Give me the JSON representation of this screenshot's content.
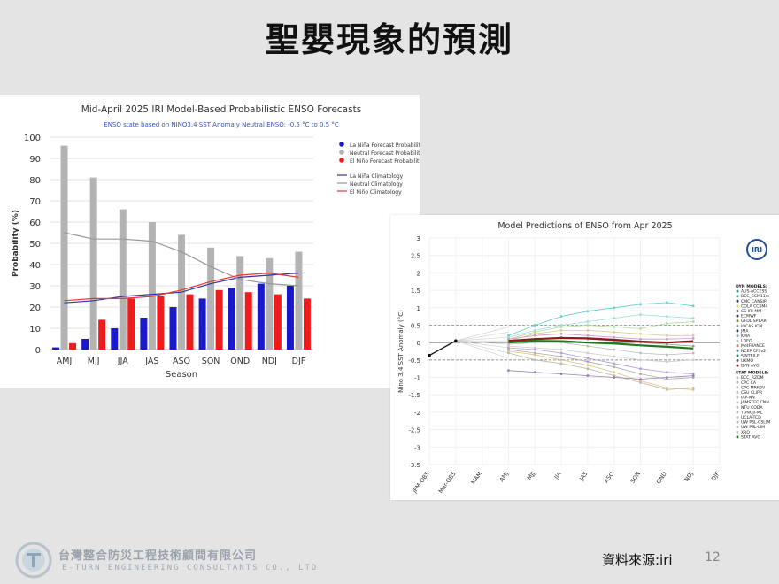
{
  "slide": {
    "title": "聖嬰現象的預測",
    "source": "資料來源:iri",
    "page_number": "12",
    "company_zh": "台灣整合防災工程技術顧問有限公司",
    "company_en": "E-TURN ENGINEERING CONSULTANTS CO., LTD"
  },
  "colors": {
    "background": "#e4e4e4",
    "la_nina": "#1a1acc",
    "neutral": "#b3b3b3",
    "el_nino": "#ee1c1c",
    "la_nina_clim": "#3333aa",
    "neutral_clim": "#999999",
    "el_nino_clim": "#e53935"
  },
  "chart_data": [
    {
      "type": "bar",
      "title": "Mid-April 2025 IRI Model-Based Probabilistic ENSO Forecasts",
      "subtitle": "ENSO state based on NINO3.4 SST Anomaly Neutral ENSO: -0.5 °C to 0.5 °C",
      "xlabel": "Season",
      "ylabel": "Probability (%)",
      "ylim": [
        0,
        100
      ],
      "yticks": [
        "0",
        "10",
        "20",
        "30",
        "40",
        "50",
        "60",
        "70",
        "80",
        "90",
        "100"
      ],
      "grid": true,
      "legend_position": "top-right",
      "categories": [
        "AMJ",
        "MJJ",
        "JJA",
        "JAS",
        "ASO",
        "SON",
        "OND",
        "NDJ",
        "DJF"
      ],
      "series": [
        {
          "name": "La Niña Forecast Probability",
          "values": [
            1,
            5,
            10,
            15,
            20,
            24,
            29,
            31,
            30
          ]
        },
        {
          "name": "Neutral Forecast Probability",
          "values": [
            96,
            81,
            66,
            60,
            54,
            48,
            44,
            43,
            46
          ]
        },
        {
          "name": "El Niño Forecast Probability",
          "values": [
            3,
            14,
            24,
            25,
            26,
            28,
            27,
            26,
            24
          ]
        }
      ],
      "lines": [
        {
          "name": "La Niña Climatology",
          "values": [
            22,
            23,
            25,
            26,
            27,
            31,
            34,
            35,
            36
          ]
        },
        {
          "name": "Neutral Climatology",
          "values": [
            55,
            52,
            52,
            51,
            46,
            39,
            33,
            31,
            30
          ]
        },
        {
          "name": "El Niño Climatology",
          "values": [
            23,
            24,
            24,
            25,
            28,
            32,
            35,
            36,
            34
          ]
        }
      ]
    },
    {
      "type": "line",
      "title": "Model Predictions of ENSO from Apr 2025",
      "ylabel": "Nino 3.4 SST Anomaly (°C)",
      "ylim": [
        -3.5,
        3
      ],
      "yticks": [
        "3",
        "2.5",
        "2",
        "1.5",
        "1",
        "0.5",
        "0",
        "-0.5",
        "-1",
        "-1.5",
        "-2",
        "-2.5",
        "-3",
        "-3.5"
      ],
      "categories": [
        "JFM-OBS",
        "Mar-OBS",
        "MAM",
        "AMJ",
        "MJJ",
        "JJA",
        "JAS",
        "ASO",
        "SON",
        "OND",
        "NDJ",
        "DJF"
      ],
      "logo_text": "IRI",
      "observed": [
        -0.37,
        0.05
      ],
      "dyn_avg": [
        0.05,
        0.1,
        0.13,
        0.12,
        0.08,
        0.03,
        0.0,
        0.04
      ],
      "stat_avg": [
        0.0,
        0.05,
        0.04,
        0.0,
        -0.03,
        -0.08,
        -0.12,
        -0.17
      ],
      "dyn_models_header": "DYN MODELS:",
      "dyn_models": [
        "AUS-ACCESS",
        "BCC_CSM11m",
        "CMC CANSIP",
        "COLA CCSM4",
        "CS-IRI-MM",
        "ECMWF",
        "GFDL SPEAR",
        "IOCAS ICM",
        "JMA",
        "KMA",
        "LDEO",
        "MetFRANCE",
        "NCEP CFSv2",
        "SINTEX-F",
        "UKMO",
        "DYN AVG"
      ],
      "stat_models_header": "STAT MODELS:",
      "stat_models": [
        "BCC_RZDM",
        "CPC CA",
        "CPC MRKOV",
        "CSU CLIPR",
        "IAP-NN",
        "JAMSTEC CNN",
        "NTU CODA",
        "TONGJI-ML",
        "UCLA-TCD",
        "UW PSL-CSLIM",
        "UW PSL-LIM",
        "XRO",
        "STAT AVG"
      ],
      "spaghetti": [
        [
          0.2,
          0.5,
          0.75,
          0.9,
          1.0,
          1.1,
          1.15,
          1.05
        ],
        [
          0.15,
          0.35,
          0.5,
          0.6,
          0.7,
          0.8,
          0.75,
          0.7
        ],
        [
          0.1,
          0.3,
          0.45,
          0.5,
          0.45,
          0.4,
          0.55,
          0.6
        ],
        [
          0.05,
          0.25,
          0.35,
          0.35,
          0.3,
          0.25,
          0.2,
          0.2
        ],
        [
          0.1,
          0.2,
          0.25,
          0.2,
          0.15,
          0.1,
          0.1,
          0.12
        ],
        [
          0.0,
          0.1,
          0.15,
          0.1,
          0.05,
          0.0,
          -0.05,
          -0.1
        ],
        [
          -0.05,
          0.0,
          0.0,
          -0.1,
          -0.2,
          -0.3,
          -0.35,
          -0.3
        ],
        [
          -0.1,
          -0.15,
          -0.2,
          -0.3,
          -0.4,
          -0.5,
          -0.55,
          -0.5
        ],
        [
          -0.15,
          -0.2,
          -0.3,
          -0.45,
          -0.6,
          -0.75,
          -0.85,
          -0.9
        ],
        [
          -0.2,
          -0.3,
          -0.4,
          -0.55,
          -0.7,
          -0.9,
          -1.05,
          -1.0
        ],
        [
          -0.25,
          -0.35,
          -0.5,
          -0.65,
          -0.85,
          -1.1,
          -1.3,
          -1.35
        ],
        [
          -0.3,
          -0.5,
          -0.6,
          -0.75,
          -0.95,
          -1.15,
          -1.35,
          -1.3
        ],
        [
          -0.8,
          -0.85,
          -0.9,
          -0.95,
          -1.0,
          -1.05,
          -1.0,
          -0.95
        ]
      ]
    }
  ]
}
